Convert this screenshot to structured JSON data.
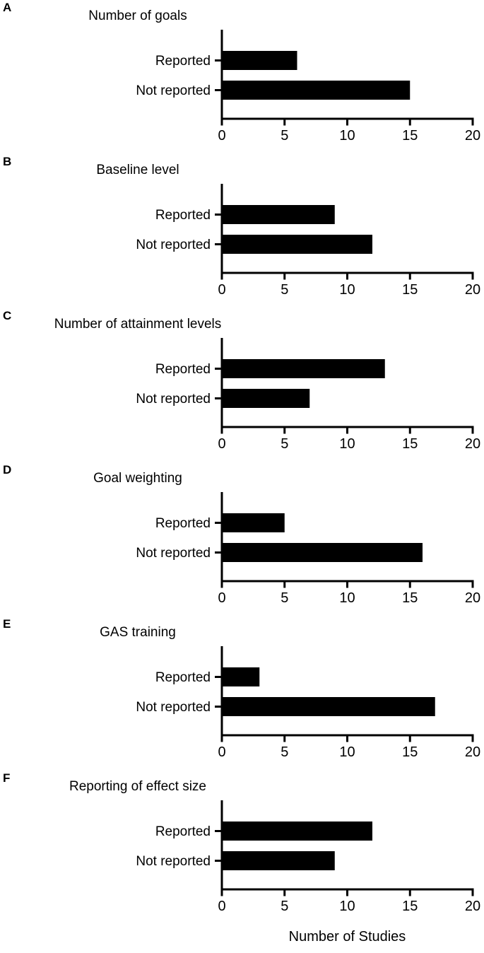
{
  "figure": {
    "xlabel": "Number of Studies",
    "bar_color": "#000000",
    "background_color": "#ffffff",
    "categories": [
      "Reported",
      "Not reported"
    ],
    "x_ticks": [
      0,
      5,
      10,
      15,
      20
    ],
    "x_max": 20
  },
  "chart_data": [
    {
      "type": "bar",
      "orientation": "horizontal",
      "panel": "A",
      "title": "Number of goals",
      "categories": [
        "Reported",
        "Not reported"
      ],
      "values": [
        6,
        15
      ],
      "xlabel": "Number of Studies",
      "xlim": [
        0,
        20
      ],
      "x_ticks": [
        0,
        5,
        10,
        15,
        20
      ],
      "grid": false,
      "legend": false
    },
    {
      "type": "bar",
      "orientation": "horizontal",
      "panel": "B",
      "title": "Baseline level",
      "categories": [
        "Reported",
        "Not reported"
      ],
      "values": [
        9,
        12
      ],
      "xlabel": "Number of Studies",
      "xlim": [
        0,
        20
      ],
      "x_ticks": [
        0,
        5,
        10,
        15,
        20
      ],
      "grid": false,
      "legend": false
    },
    {
      "type": "bar",
      "orientation": "horizontal",
      "panel": "C",
      "title": "Number of attainment levels",
      "categories": [
        "Reported",
        "Not reported"
      ],
      "values": [
        13,
        7
      ],
      "xlabel": "Number of Studies",
      "xlim": [
        0,
        20
      ],
      "x_ticks": [
        0,
        5,
        10,
        15,
        20
      ],
      "grid": false,
      "legend": false
    },
    {
      "type": "bar",
      "orientation": "horizontal",
      "panel": "D",
      "title": "Goal weighting",
      "categories": [
        "Reported",
        "Not reported"
      ],
      "values": [
        5,
        16
      ],
      "xlabel": "Number of Studies",
      "xlim": [
        0,
        20
      ],
      "x_ticks": [
        0,
        5,
        10,
        15,
        20
      ],
      "grid": false,
      "legend": false
    },
    {
      "type": "bar",
      "orientation": "horizontal",
      "panel": "E",
      "title": "GAS training",
      "categories": [
        "Reported",
        "Not reported"
      ],
      "values": [
        3,
        17
      ],
      "xlabel": "Number of Studies",
      "xlim": [
        0,
        20
      ],
      "x_ticks": [
        0,
        5,
        10,
        15,
        20
      ],
      "grid": false,
      "legend": false
    },
    {
      "type": "bar",
      "orientation": "horizontal",
      "panel": "F",
      "title": "Reporting of effect size",
      "categories": [
        "Reported",
        "Not reported"
      ],
      "values": [
        12,
        9
      ],
      "xlabel": "Number of Studies",
      "xlim": [
        0,
        20
      ],
      "x_ticks": [
        0,
        5,
        10,
        15,
        20
      ],
      "grid": false,
      "legend": false
    }
  ]
}
